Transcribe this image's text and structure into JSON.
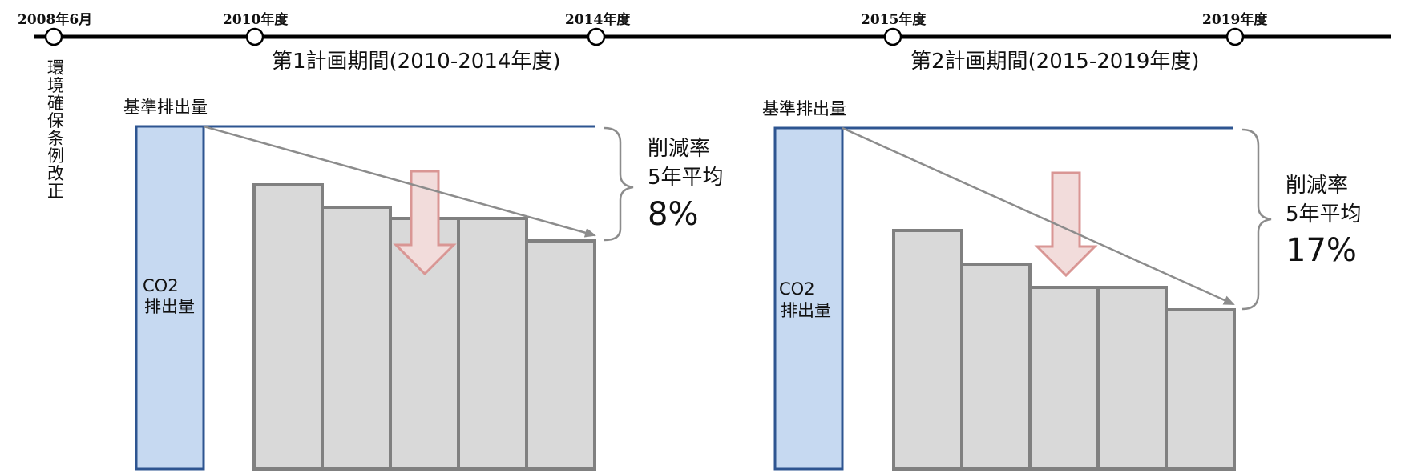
{
  "timeline": {
    "events": [
      {
        "label": "2008年6月"
      },
      {
        "label": "2010年度"
      },
      {
        "label": "2014年度"
      },
      {
        "label": "2015年度"
      },
      {
        "label": "2019年度"
      }
    ],
    "note_chars": [
      "環",
      "境",
      "確",
      "保",
      "条",
      "例",
      "改",
      "正"
    ]
  },
  "periods": [
    {
      "title": "第1計画期間(2010-2014年度)",
      "baseline_label": "基準排出量",
      "baseline_bar_label_line1": "CO2",
      "baseline_bar_label_line2": "排出量",
      "rate_label_line1": "削減率",
      "rate_label_line2": "5年平均",
      "rate_value": "8%"
    },
    {
      "title": "第2計画期間(2015-2019年度)",
      "baseline_label": "基準排出量",
      "baseline_bar_label_line1": "CO2",
      "baseline_bar_label_line2": "排出量",
      "rate_label_line1": "削減率",
      "rate_label_line2": "5年平均",
      "rate_value": "17%"
    }
  ],
  "colors": {
    "timeline": "#000000",
    "baseline_bar_fill": "#c6d9f1",
    "baseline_bar_stroke": "#2e5591",
    "bar_fill": "#d9d9d9",
    "bar_stroke": "#808080",
    "trend_line": "#8c8c8c",
    "arrow_fill": "#f2dcdb",
    "arrow_stroke": "#d99694"
  }
}
